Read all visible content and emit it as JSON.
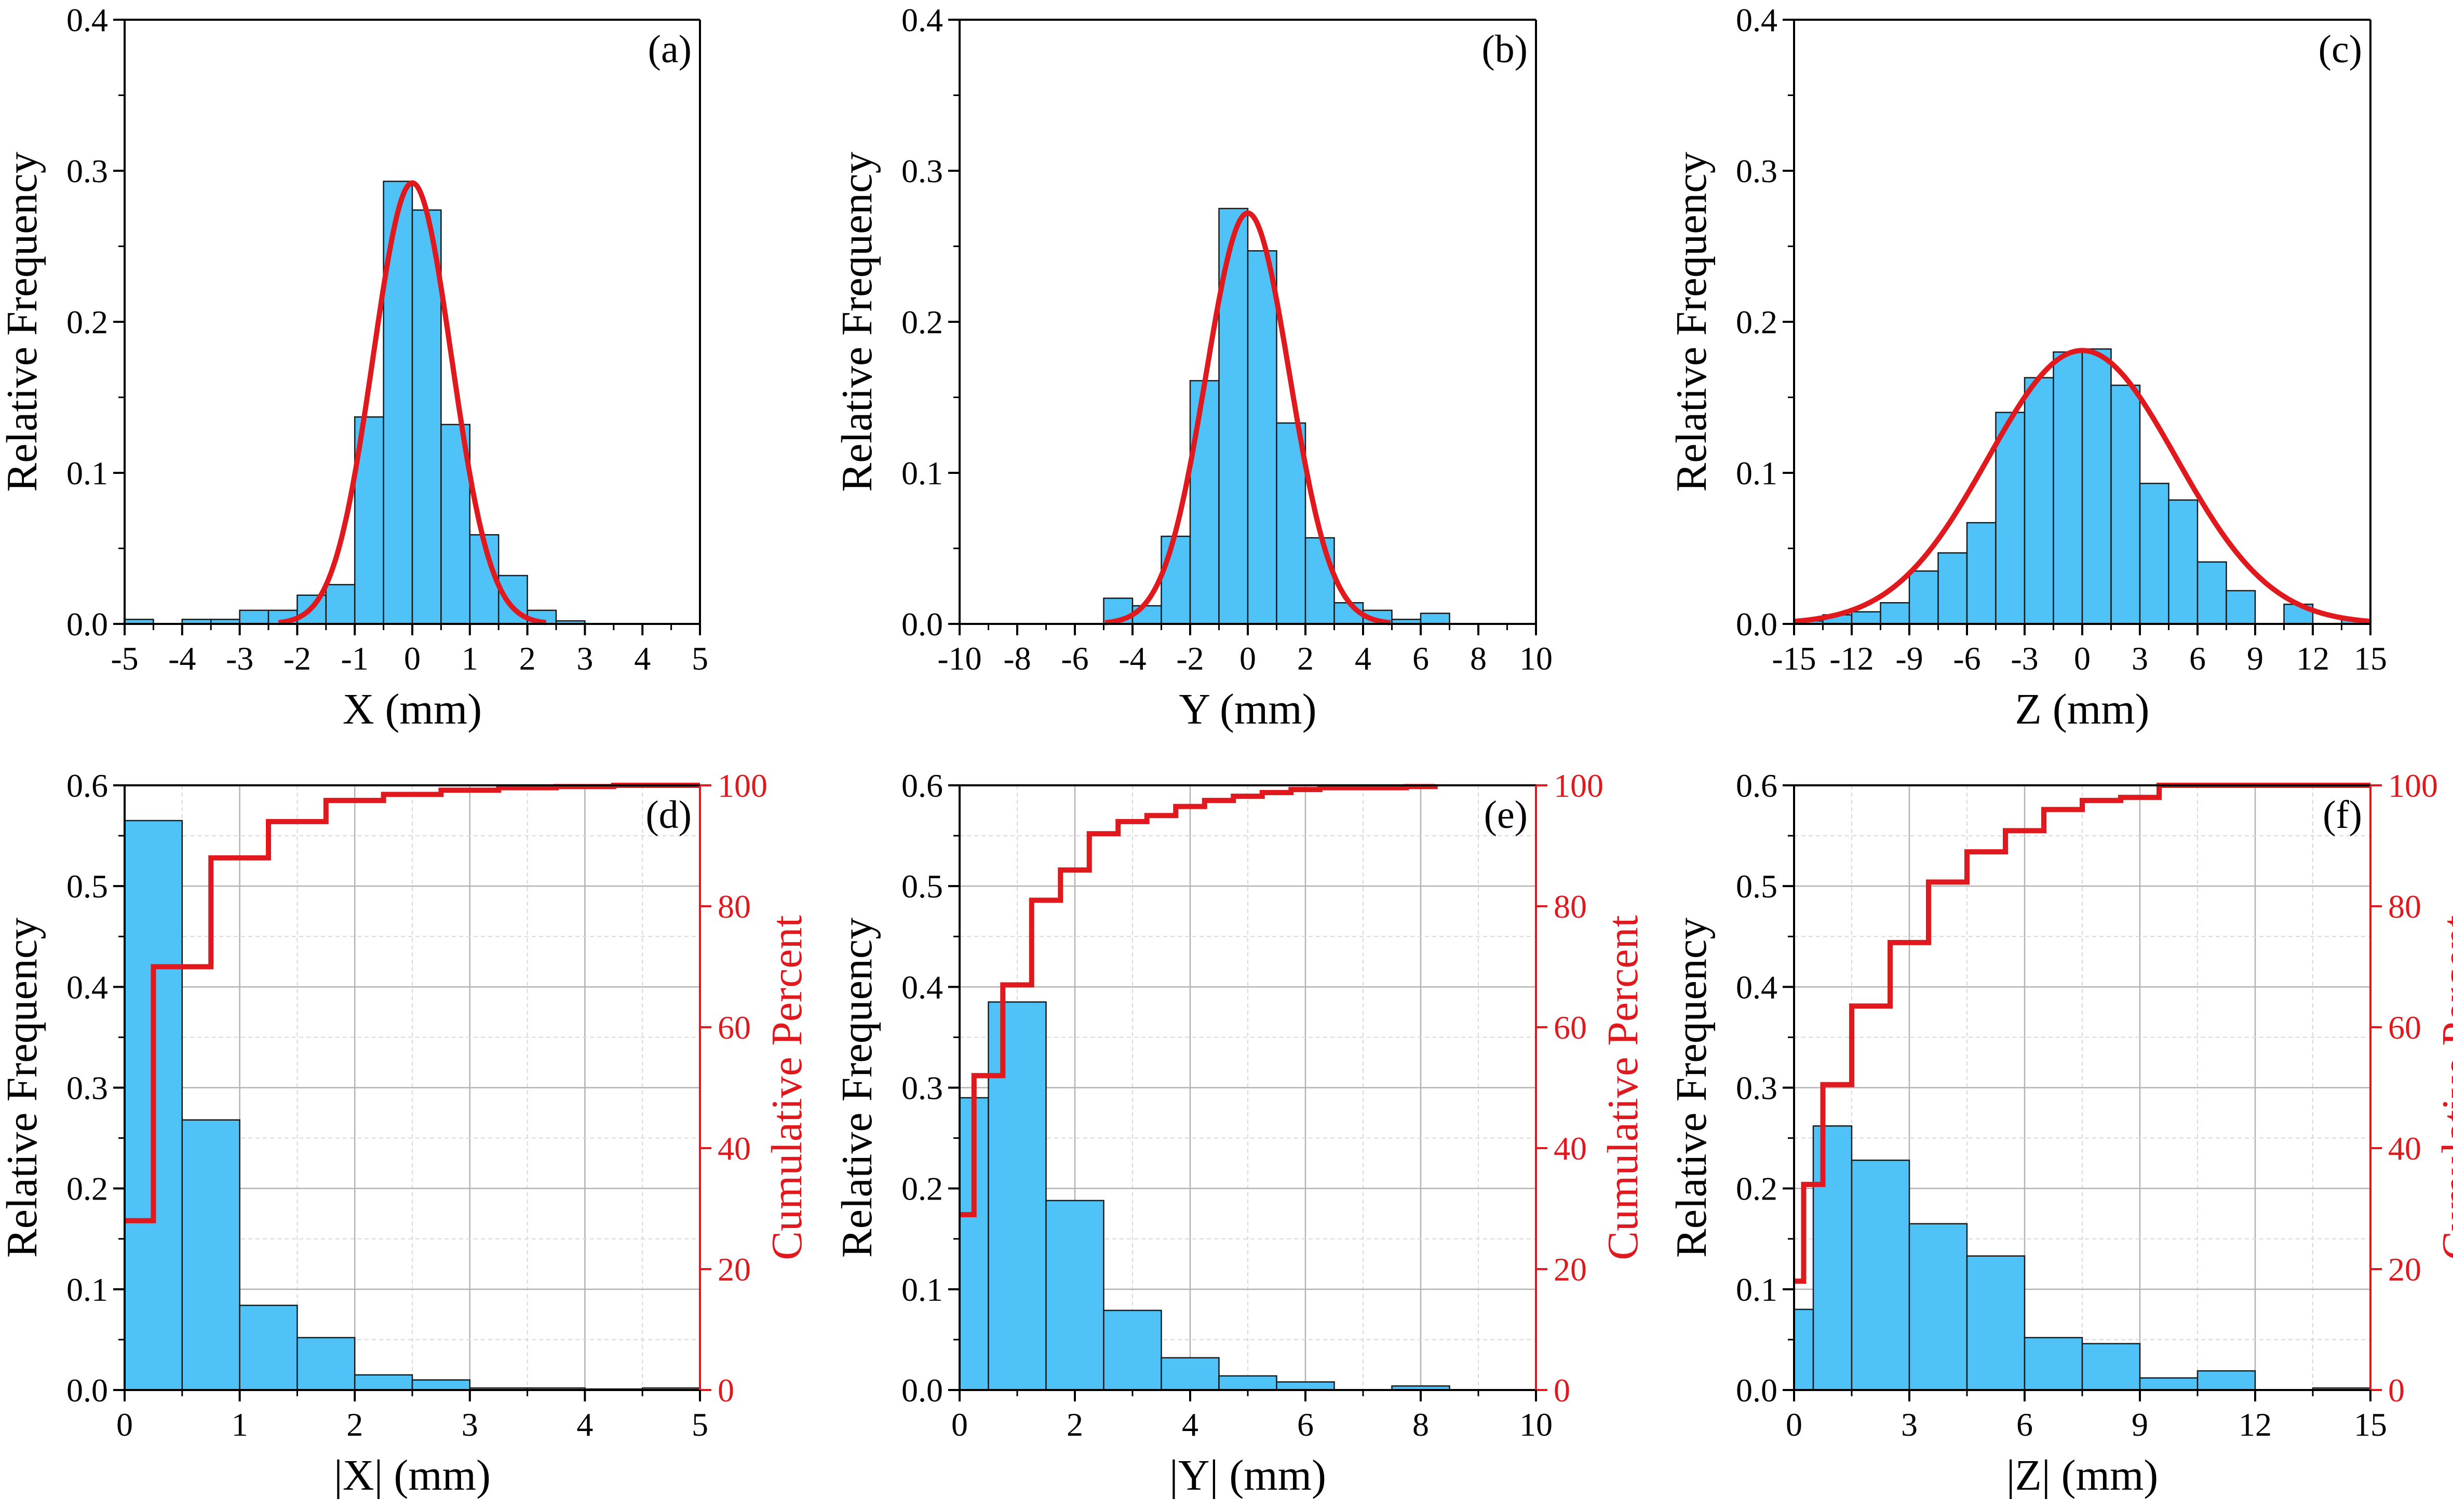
{
  "colors": {
    "bar_fill": "#4FC3F7",
    "bar_edge": "#1a1a1a",
    "curve": "#E0191E",
    "grid_major": "#b3b3b3",
    "grid_minor": "#d9d9d9"
  },
  "chart_data": [
    {
      "id": "a",
      "type": "bar",
      "panel_label": "(a)",
      "xlabel": "X (mm)",
      "ylabel": "Relative Frequency",
      "xlim": [
        -5,
        5
      ],
      "ylim": [
        0,
        0.4
      ],
      "xticks": [
        -5,
        -4,
        -3,
        -2,
        -1,
        0,
        1,
        2,
        3,
        4,
        5
      ],
      "xtick_labels": [
        "-5",
        "-4",
        "-3",
        "-2",
        "-1",
        "0",
        "1",
        "2",
        "3",
        "4",
        "5"
      ],
      "yticks": [
        0,
        0.1,
        0.2,
        0.3,
        0.4
      ],
      "ytick_labels": [
        "0.0",
        "0.1",
        "0.2",
        "0.3",
        "0.4"
      ],
      "grid": false,
      "bin_edges": [
        -5,
        -4.5,
        -4,
        -3.5,
        -3,
        -2.5,
        -2,
        -1.5,
        -1,
        -0.5,
        0,
        0.5,
        1,
        1.5,
        2,
        2.5,
        3,
        3.5,
        4,
        4.5,
        5
      ],
      "values": [
        0.003,
        0.0,
        0.003,
        0.003,
        0.009,
        0.009,
        0.019,
        0.026,
        0.137,
        0.293,
        0.274,
        0.132,
        0.059,
        0.032,
        0.009,
        0.002,
        0.0,
        0.0,
        0.0,
        0.0
      ],
      "fit": {
        "type": "normal",
        "mean": 0.0,
        "sd": 0.68,
        "peak": 0.292
      }
    },
    {
      "id": "b",
      "type": "bar",
      "panel_label": "(b)",
      "xlabel": "Y (mm)",
      "ylabel": "Relative Frequency",
      "xlim": [
        -10,
        10
      ],
      "ylim": [
        0,
        0.4
      ],
      "xticks": [
        -10,
        -8,
        -6,
        -4,
        -2,
        0,
        2,
        4,
        6,
        8,
        10
      ],
      "xtick_labels": [
        "-10",
        "-8",
        "-6",
        "-4",
        "-2",
        "0",
        "2",
        "4",
        "6",
        "8",
        "10"
      ],
      "yticks": [
        0,
        0.1,
        0.2,
        0.3,
        0.4
      ],
      "ytick_labels": [
        "0.0",
        "0.1",
        "0.2",
        "0.3",
        "0.4"
      ],
      "grid": false,
      "bin_edges": [
        -10,
        -9,
        -8,
        -7,
        -6,
        -5,
        -4,
        -3,
        -2,
        -1,
        0,
        1,
        2,
        3,
        4,
        5,
        6,
        7,
        8,
        9,
        10
      ],
      "values": [
        0.0,
        0.0,
        0.0,
        0.0,
        0.0,
        0.017,
        0.012,
        0.058,
        0.161,
        0.275,
        0.247,
        0.133,
        0.057,
        0.014,
        0.009,
        0.003,
        0.007,
        0.0,
        0.0,
        0.0
      ],
      "fit": {
        "type": "normal",
        "mean": 0.0,
        "sd": 1.45,
        "peak": 0.272
      }
    },
    {
      "id": "c",
      "type": "bar",
      "panel_label": "(c)",
      "xlabel": "Z (mm)",
      "ylabel": "Relative Frequency",
      "xlim": [
        -15,
        15
      ],
      "ylim": [
        0,
        0.4
      ],
      "xticks": [
        -15,
        -12,
        -9,
        -6,
        -3,
        0,
        3,
        6,
        9,
        12,
        15
      ],
      "xtick_labels": [
        "-15",
        "-12",
        "-9",
        "-6",
        "-3",
        "0",
        "3",
        "6",
        "9",
        "12",
        "15"
      ],
      "yticks": [
        0,
        0.1,
        0.2,
        0.3,
        0.4
      ],
      "ytick_labels": [
        "0.0",
        "0.1",
        "0.2",
        "0.3",
        "0.4"
      ],
      "grid": false,
      "bin_edges": [
        -15,
        -13.5,
        -12,
        -10.5,
        -9,
        -7.5,
        -6,
        -4.5,
        -3,
        -1.5,
        0,
        1.5,
        3,
        4.5,
        6,
        7.5,
        9,
        10.5,
        12,
        13.5,
        15
      ],
      "values": [
        0.002,
        0.006,
        0.008,
        0.014,
        0.035,
        0.047,
        0.067,
        0.14,
        0.163,
        0.18,
        0.182,
        0.158,
        0.093,
        0.082,
        0.041,
        0.022,
        0.0,
        0.013,
        0.0,
        0.003
      ],
      "fit": {
        "type": "normal",
        "mean": 0.0,
        "sd": 4.9,
        "peak": 0.181
      }
    },
    {
      "id": "d",
      "type": "bar",
      "panel_label": "(d)",
      "xlabel": "|X| (mm)",
      "ylabel": "Relative Frequency",
      "y2label": "Cumulative Percent",
      "xlim": [
        0,
        5
      ],
      "ylim": [
        0,
        0.6
      ],
      "y2lim": [
        0,
        100
      ],
      "xticks": [
        0,
        1,
        2,
        3,
        4,
        5
      ],
      "xtick_labels": [
        "0",
        "1",
        "2",
        "3",
        "4",
        "5"
      ],
      "yticks": [
        0,
        0.1,
        0.2,
        0.3,
        0.4,
        0.5,
        0.6
      ],
      "ytick_labels": [
        "0.0",
        "0.1",
        "0.2",
        "0.3",
        "0.4",
        "0.5",
        "0.6"
      ],
      "y2ticks": [
        0,
        20,
        40,
        60,
        80,
        100
      ],
      "y2tick_labels": [
        "0",
        "20",
        "40",
        "60",
        "80",
        "100"
      ],
      "grid": true,
      "bin_edges": [
        0,
        0.5,
        1,
        1.5,
        2,
        2.5,
        3,
        3.5,
        4,
        4.5,
        5
      ],
      "values": [
        0.565,
        0.268,
        0.084,
        0.052,
        0.015,
        0.01,
        0.002,
        0.002,
        0.001,
        0.002
      ],
      "cumulative": {
        "x": [
          0,
          0.25,
          0.75,
          1.25,
          1.75,
          2.25,
          2.75,
          3.25,
          3.75,
          4.25,
          5.0
        ],
        "y": [
          28,
          70,
          88,
          94,
          97.5,
          98.5,
          99.2,
          99.6,
          99.8,
          100,
          100
        ]
      }
    },
    {
      "id": "e",
      "type": "bar",
      "panel_label": "(e)",
      "xlabel": "|Y| (mm)",
      "ylabel": "Relative Frequency",
      "y2label": "Cumulative Percent",
      "xlim": [
        0,
        10
      ],
      "ylim": [
        0,
        0.6
      ],
      "y2lim": [
        0,
        100
      ],
      "xticks": [
        0,
        2,
        4,
        6,
        8,
        10
      ],
      "xtick_labels": [
        "0",
        "2",
        "4",
        "6",
        "8",
        "10"
      ],
      "yticks": [
        0,
        0.1,
        0.2,
        0.3,
        0.4,
        0.5,
        0.6
      ],
      "ytick_labels": [
        "0.0",
        "0.1",
        "0.2",
        "0.3",
        "0.4",
        "0.5",
        "0.6"
      ],
      "y2ticks": [
        0,
        20,
        40,
        60,
        80,
        100
      ],
      "y2tick_labels": [
        "0",
        "20",
        "40",
        "60",
        "80",
        "100"
      ],
      "grid": true,
      "bin_edges": [
        0,
        0.5,
        1.5,
        2.5,
        3.5,
        4.5,
        5.5,
        6.5,
        7.5,
        8.5,
        9.5
      ],
      "values": [
        0.29,
        0.385,
        0.188,
        0.079,
        0.032,
        0.014,
        0.008,
        0.0,
        0.004,
        0.0
      ],
      "cumulative": {
        "x": [
          0,
          0.25,
          0.75,
          1.25,
          1.75,
          2.25,
          2.75,
          3.25,
          3.75,
          4.25,
          4.75,
          5.25,
          5.75,
          6.25,
          7.75,
          8.25
        ],
        "y": [
          29,
          52,
          67,
          81,
          86,
          92,
          94,
          95,
          96.5,
          97.5,
          98.2,
          98.8,
          99.3,
          99.6,
          99.8,
          100
        ]
      }
    },
    {
      "id": "f",
      "type": "bar",
      "panel_label": "(f)",
      "xlabel": "|Z| (mm)",
      "ylabel": "Relative Frequency",
      "y2label": "Cumulative Percent",
      "xlim": [
        0,
        15
      ],
      "ylim": [
        0,
        0.6
      ],
      "y2lim": [
        0,
        100
      ],
      "xticks": [
        0,
        3,
        6,
        9,
        12,
        15
      ],
      "xtick_labels": [
        "0",
        "3",
        "6",
        "9",
        "12",
        "15"
      ],
      "yticks": [
        0,
        0.1,
        0.2,
        0.3,
        0.4,
        0.5,
        0.6
      ],
      "ytick_labels": [
        "0.0",
        "0.1",
        "0.2",
        "0.3",
        "0.4",
        "0.5",
        "0.6"
      ],
      "y2ticks": [
        0,
        20,
        40,
        60,
        80,
        100
      ],
      "y2tick_labels": [
        "0",
        "20",
        "40",
        "60",
        "80",
        "100"
      ],
      "grid": true,
      "bin_edges": [
        0,
        0.5,
        1.5,
        3,
        4.5,
        6,
        7.5,
        9,
        10.5,
        12,
        13.5,
        15
      ],
      "values": [
        0.08,
        0.262,
        0.228,
        0.165,
        0.133,
        0.052,
        0.046,
        0.012,
        0.019,
        0.0,
        0.002
      ],
      "cumulative": {
        "x": [
          0,
          0.25,
          0.75,
          1.5,
          2.5,
          3.5,
          4.5,
          5.5,
          6.5,
          7.5,
          8.5,
          9.5,
          10.5,
          11.5,
          15
        ],
        "y": [
          18,
          34,
          50.5,
          63.5,
          74,
          84,
          89,
          92.5,
          96,
          97.5,
          98,
          100,
          100,
          100,
          100
        ]
      }
    }
  ]
}
